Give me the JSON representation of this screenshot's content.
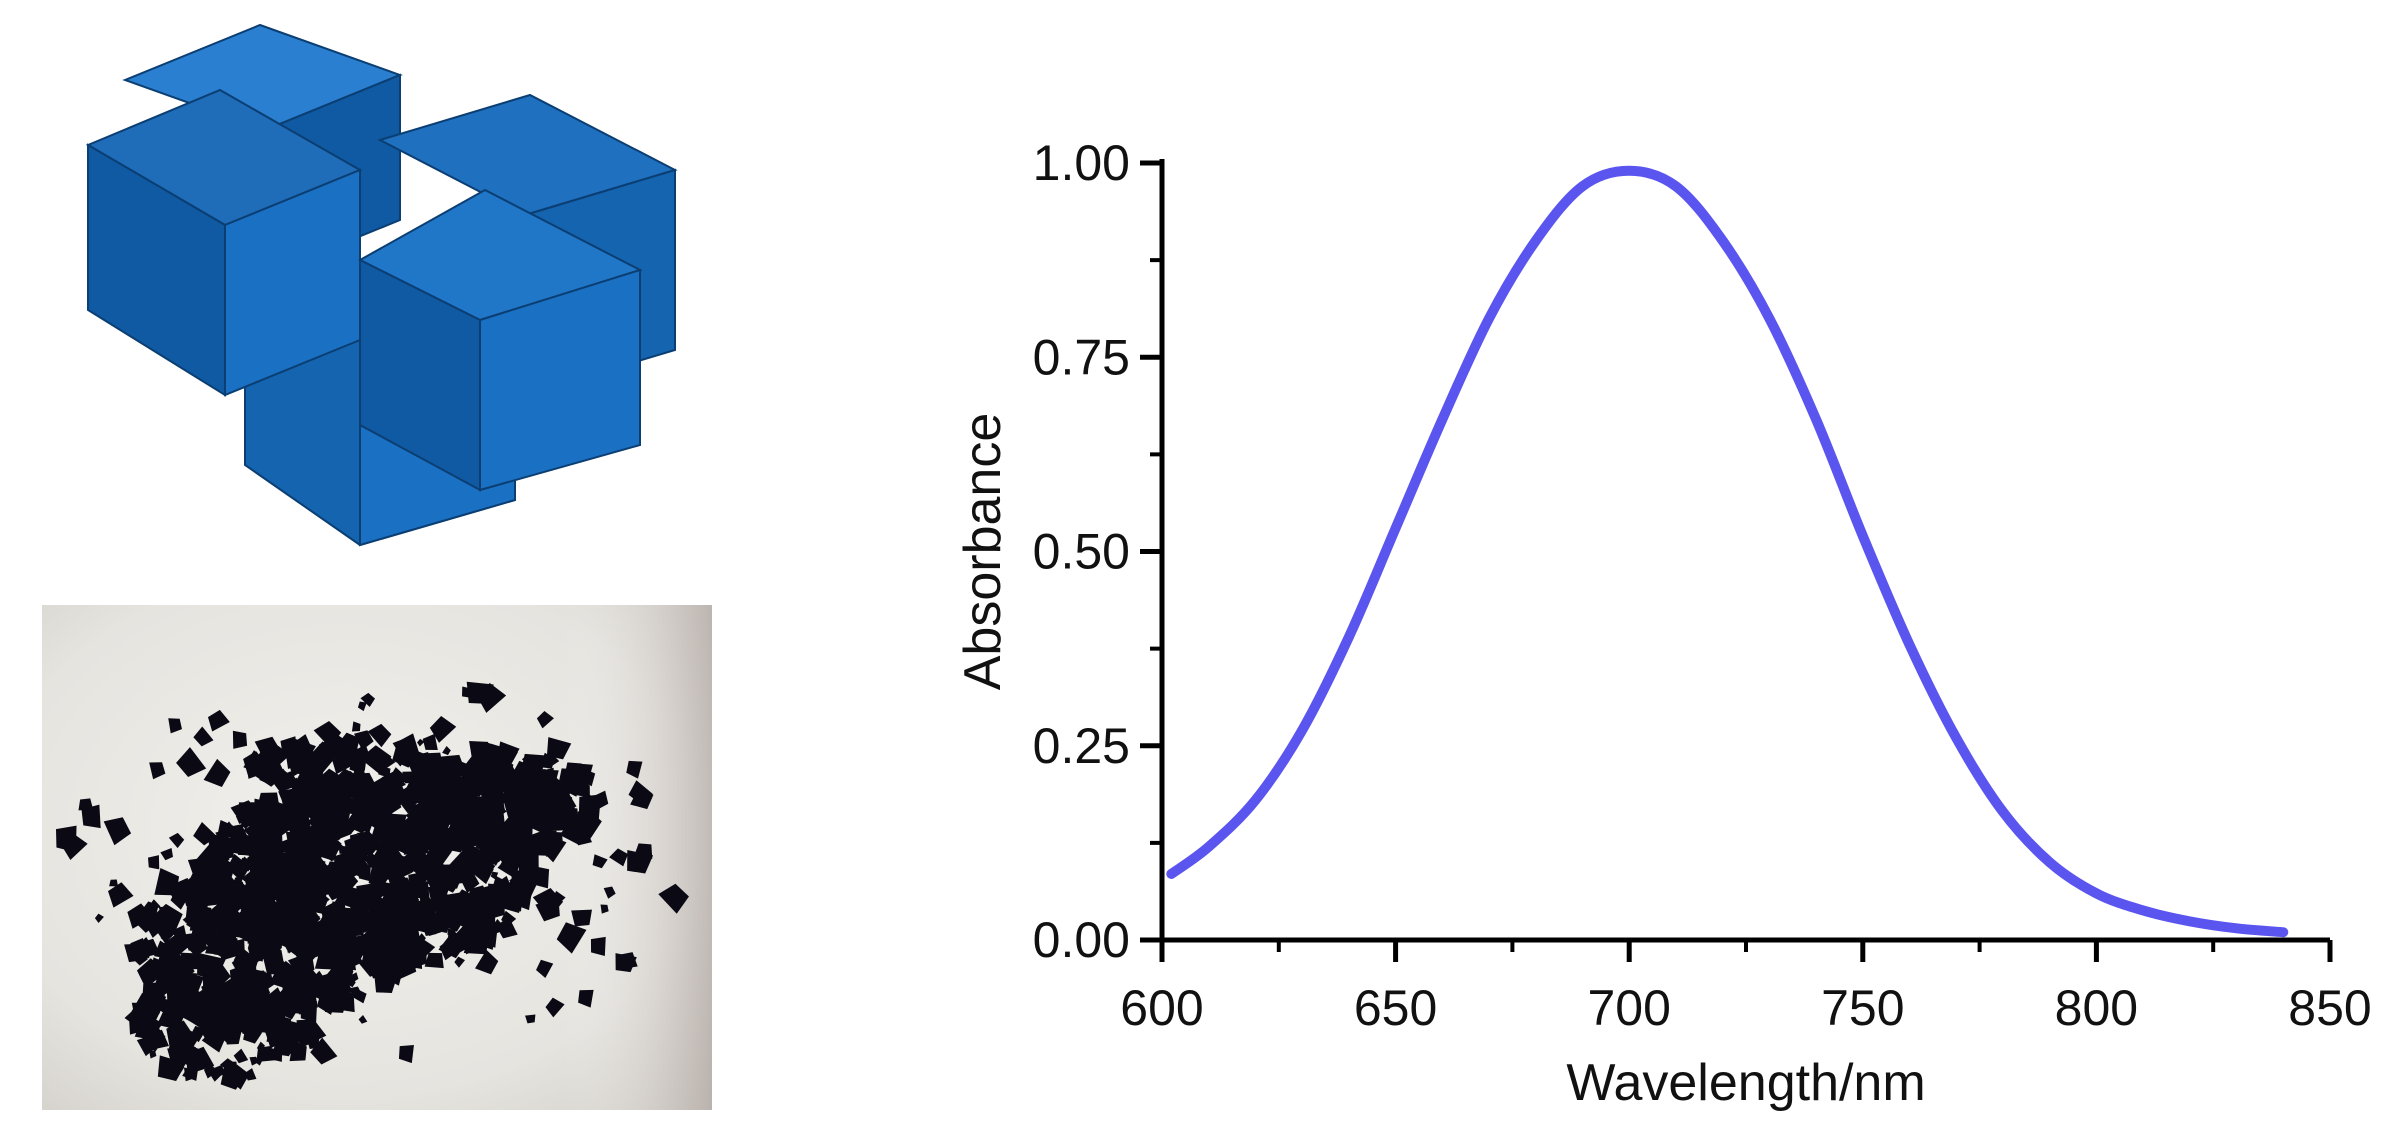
{
  "colors": {
    "curve": "#5b55f0",
    "cube_front": "#1a70c2",
    "cube_side": "#0f5aa2",
    "cube_top": "#2a7fd0",
    "cube_edge": "#0b3e72",
    "axis": "#000000"
  },
  "illustrations": {
    "top_left": "blue-interlocking-cubes-rendering",
    "bottom_left": "black-crystalline-powder-photo"
  },
  "chart_data": {
    "type": "line",
    "title": "",
    "xlabel": "Wavelength/nm",
    "ylabel": "Absorbance",
    "xlim": [
      600,
      850
    ],
    "ylim": [
      0,
      1
    ],
    "xticks": [
      {
        "value": 600,
        "label": "600"
      },
      {
        "value": 650,
        "label": "650"
      },
      {
        "value": 700,
        "label": "700"
      },
      {
        "value": 750,
        "label": "750"
      },
      {
        "value": 800,
        "label": "800"
      },
      {
        "value": 850,
        "label": "850"
      }
    ],
    "yticks": [
      {
        "value": 0,
        "label": "0.00"
      },
      {
        "value": 0.25,
        "label": "0.25"
      },
      {
        "value": 0.5,
        "label": "0.50"
      },
      {
        "value": 0.75,
        "label": "0.75"
      },
      {
        "value": 1,
        "label": "1.00"
      }
    ],
    "grid": false,
    "legend": "none",
    "series": [
      {
        "x": [
          602,
          610,
          620,
          630,
          640,
          650,
          660,
          670,
          680,
          690,
          700,
          710,
          720,
          730,
          740,
          750,
          760,
          770,
          780,
          790,
          800,
          810,
          820,
          830,
          840
        ],
        "y": [
          0.085,
          0.12,
          0.18,
          0.27,
          0.39,
          0.53,
          0.67,
          0.8,
          0.9,
          0.97,
          0.99,
          0.97,
          0.9,
          0.8,
          0.67,
          0.52,
          0.38,
          0.26,
          0.165,
          0.1,
          0.06,
          0.038,
          0.024,
          0.015,
          0.01
        ]
      }
    ]
  }
}
